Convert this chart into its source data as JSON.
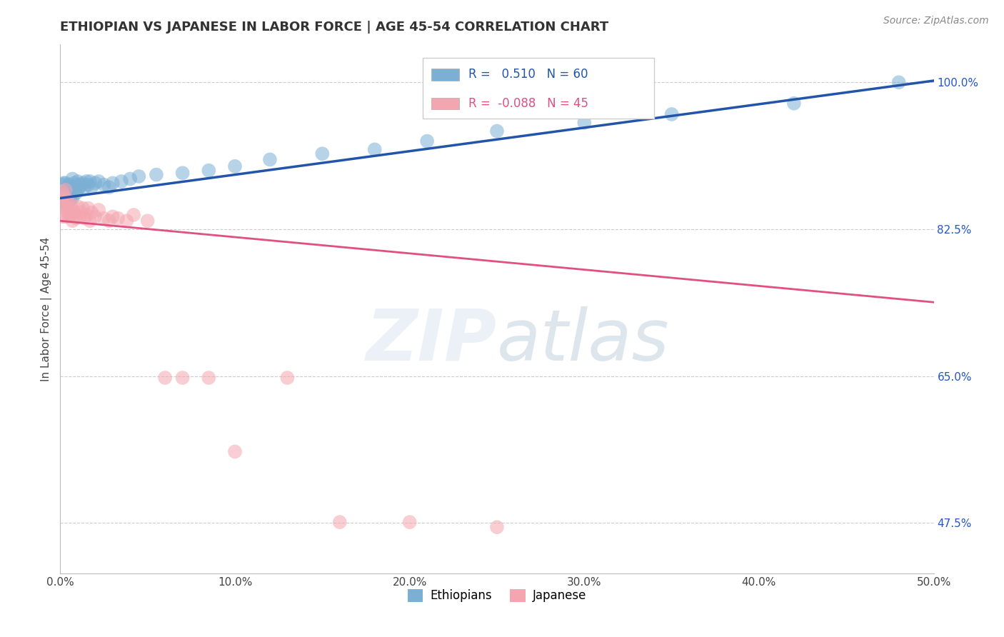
{
  "title": "ETHIOPIAN VS JAPANESE IN LABOR FORCE | AGE 45-54 CORRELATION CHART",
  "source": "Source: ZipAtlas.com",
  "ylabel_text": "In Labor Force | Age 45-54",
  "xlim": [
    0.0,
    0.5
  ],
  "ylim": [
    0.415,
    1.045
  ],
  "xtick_labels": [
    "0.0%",
    "10.0%",
    "20.0%",
    "30.0%",
    "40.0%",
    "50.0%"
  ],
  "xtick_values": [
    0.0,
    0.1,
    0.2,
    0.3,
    0.4,
    0.5
  ],
  "ytick_labels": [
    "47.5%",
    "65.0%",
    "82.5%",
    "100.0%"
  ],
  "ytick_values": [
    0.475,
    0.65,
    0.825,
    1.0
  ],
  "blue_color": "#7BAFD4",
  "pink_color": "#F4A6B0",
  "blue_line_color": "#2255AA",
  "pink_line_color": "#E05080",
  "legend_blue_r": "0.510",
  "legend_blue_n": "60",
  "legend_pink_r": "-0.088",
  "legend_pink_n": "45",
  "ethiopians_x": [
    0.001,
    0.001,
    0.001,
    0.001,
    0.002,
    0.002,
    0.002,
    0.002,
    0.002,
    0.003,
    0.003,
    0.003,
    0.003,
    0.004,
    0.004,
    0.004,
    0.005,
    0.005,
    0.005,
    0.006,
    0.006,
    0.006,
    0.007,
    0.007,
    0.007,
    0.008,
    0.008,
    0.009,
    0.009,
    0.01,
    0.01,
    0.011,
    0.012,
    0.013,
    0.014,
    0.015,
    0.016,
    0.017,
    0.018,
    0.02,
    0.022,
    0.025,
    0.028,
    0.03,
    0.035,
    0.04,
    0.045,
    0.055,
    0.07,
    0.085,
    0.1,
    0.12,
    0.15,
    0.18,
    0.21,
    0.25,
    0.3,
    0.35,
    0.42,
    0.48
  ],
  "ethiopians_y": [
    0.862,
    0.87,
    0.878,
    0.855,
    0.865,
    0.872,
    0.88,
    0.858,
    0.868,
    0.86,
    0.872,
    0.88,
    0.868,
    0.862,
    0.875,
    0.865,
    0.858,
    0.87,
    0.878,
    0.862,
    0.875,
    0.868,
    0.862,
    0.875,
    0.885,
    0.87,
    0.88,
    0.868,
    0.878,
    0.872,
    0.882,
    0.875,
    0.878,
    0.88,
    0.875,
    0.882,
    0.878,
    0.882,
    0.875,
    0.88,
    0.882,
    0.878,
    0.875,
    0.88,
    0.882,
    0.885,
    0.888,
    0.89,
    0.892,
    0.895,
    0.9,
    0.908,
    0.915,
    0.92,
    0.93,
    0.942,
    0.952,
    0.962,
    0.975,
    1.0
  ],
  "japanese_x": [
    0.001,
    0.001,
    0.001,
    0.001,
    0.002,
    0.002,
    0.003,
    0.003,
    0.003,
    0.004,
    0.004,
    0.005,
    0.005,
    0.006,
    0.006,
    0.007,
    0.007,
    0.008,
    0.009,
    0.01,
    0.011,
    0.012,
    0.013,
    0.014,
    0.015,
    0.016,
    0.017,
    0.018,
    0.02,
    0.022,
    0.025,
    0.028,
    0.03,
    0.033,
    0.038,
    0.042,
    0.05,
    0.06,
    0.07,
    0.085,
    0.1,
    0.13,
    0.16,
    0.2,
    0.25
  ],
  "japanese_y": [
    0.858,
    0.862,
    0.84,
    0.87,
    0.852,
    0.865,
    0.84,
    0.858,
    0.872,
    0.845,
    0.86,
    0.85,
    0.84,
    0.842,
    0.855,
    0.848,
    0.835,
    0.845,
    0.838,
    0.852,
    0.84,
    0.845,
    0.85,
    0.838,
    0.842,
    0.85,
    0.835,
    0.845,
    0.84,
    0.848,
    0.838,
    0.835,
    0.84,
    0.838,
    0.835,
    0.842,
    0.835,
    0.648,
    0.648,
    0.648,
    0.56,
    0.648,
    0.476,
    0.476,
    0.47
  ],
  "background_color": "#FFFFFF",
  "plot_bg_color": "#FFFFFF",
  "title_color": "#333333",
  "axis_color": "#444444",
  "grid_color": "#CCCCCC",
  "watermark_color": "#C8D8E8",
  "watermark_alpha": 0.35
}
